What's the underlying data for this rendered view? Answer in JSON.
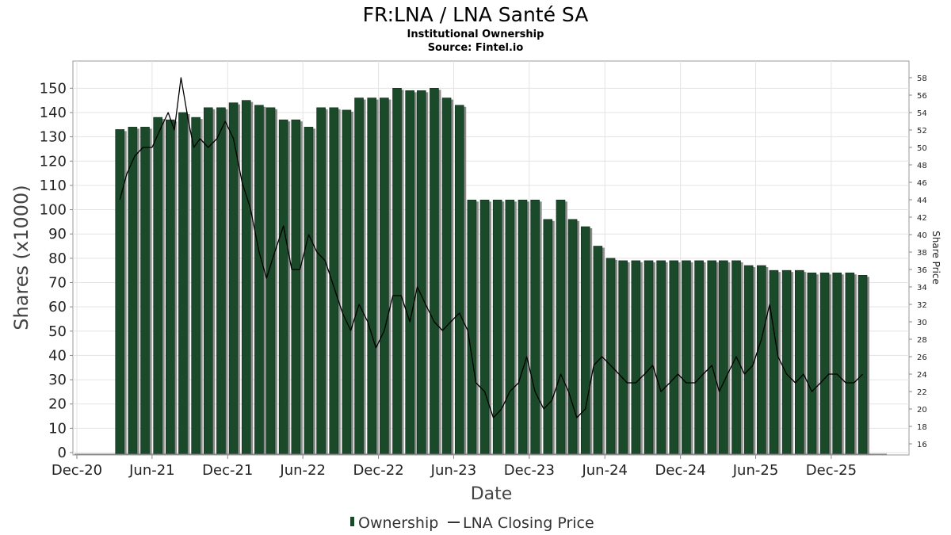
{
  "chart_data": {
    "type": "bar",
    "title": "FR:LNA / LNA Santé SA",
    "subtitle": "Institutional Ownership",
    "source": "Source: Fintel.io",
    "xlabel": "Date",
    "ylabel": "Shares (x1000)",
    "y2label": "Share Price",
    "ylim": [
      0,
      155
    ],
    "y2lim": [
      15,
      59
    ],
    "xlim": [
      "2020-12-01",
      "2026-04-01"
    ],
    "grid": true,
    "legend_position": "bottom-center",
    "x_ticks": [
      {
        "label": "Dec-20",
        "date": "2020-12-01"
      },
      {
        "label": "Jun-21",
        "date": "2021-06-01"
      },
      {
        "label": "Dec-21",
        "date": "2021-12-01"
      },
      {
        "label": "Jun-22",
        "date": "2022-06-01"
      },
      {
        "label": "Dec-22",
        "date": "2022-12-01"
      },
      {
        "label": "Jun-23",
        "date": "2023-06-01"
      },
      {
        "label": "Dec-23",
        "date": "2023-12-01"
      },
      {
        "label": "Jun-24",
        "date": "2024-06-01"
      },
      {
        "label": "Dec-24",
        "date": "2024-12-01"
      },
      {
        "label": "Jun-25",
        "date": "2025-06-01"
      },
      {
        "label": "Dec-25",
        "date": "2025-12-01"
      }
    ],
    "y_ticks": [
      0,
      10,
      20,
      30,
      40,
      50,
      60,
      70,
      80,
      90,
      100,
      110,
      120,
      130,
      140,
      150
    ],
    "y2_ticks": [
      16,
      18,
      20,
      22,
      24,
      26,
      28,
      30,
      32,
      34,
      36,
      38,
      40,
      42,
      44,
      46,
      48,
      50,
      52,
      54,
      56,
      58
    ],
    "series": [
      {
        "name": "Ownership",
        "type": "bar",
        "color": "#1b4a2a",
        "x": [
          "2021-03-15",
          "2021-04-15",
          "2021-05-15",
          "2021-06-15",
          "2021-07-15",
          "2021-08-15",
          "2021-09-15",
          "2021-10-15",
          "2021-11-15",
          "2021-12-15",
          "2022-01-15",
          "2022-02-15",
          "2022-03-15",
          "2022-04-15",
          "2022-05-15",
          "2022-06-15",
          "2022-07-15",
          "2022-08-15",
          "2022-09-15",
          "2022-10-15",
          "2022-11-15",
          "2022-12-15",
          "2023-01-15",
          "2023-02-15",
          "2023-03-15",
          "2023-04-15",
          "2023-05-15",
          "2023-06-15",
          "2023-07-15",
          "2023-08-15",
          "2023-09-15",
          "2023-10-15",
          "2023-11-15",
          "2023-12-15",
          "2024-01-15",
          "2024-02-15",
          "2024-03-15",
          "2024-04-15",
          "2024-05-15",
          "2024-06-15",
          "2024-07-15",
          "2024-08-15",
          "2024-09-15",
          "2024-10-15",
          "2024-11-15",
          "2024-12-15",
          "2025-01-15",
          "2025-02-15",
          "2025-03-15",
          "2025-04-15",
          "2025-05-15",
          "2025-06-15",
          "2025-07-15",
          "2025-08-15",
          "2025-09-15",
          "2025-10-15",
          "2025-11-15",
          "2025-12-15",
          "2026-01-15",
          "2026-02-15"
        ],
        "values": [
          133,
          134,
          134,
          138,
          137,
          140,
          138,
          142,
          142,
          144,
          145,
          143,
          142,
          137,
          137,
          134,
          142,
          142,
          141,
          146,
          146,
          146,
          150,
          149,
          149,
          150,
          146,
          143,
          104,
          104,
          104,
          104,
          104,
          104,
          96,
          104,
          96,
          93,
          85,
          80,
          79,
          79,
          79,
          79,
          79,
          79,
          79,
          79,
          79,
          79,
          77,
          77,
          75,
          75,
          75,
          74,
          74,
          74,
          74,
          73
        ]
      },
      {
        "name": "LNA Closing Price",
        "type": "line",
        "color": "#000000",
        "x": [
          "2021-03-15",
          "2021-04-01",
          "2021-04-20",
          "2021-05-10",
          "2021-06-01",
          "2021-06-20",
          "2021-07-10",
          "2021-07-25",
          "2021-08-10",
          "2021-08-28",
          "2021-09-10",
          "2021-09-25",
          "2021-10-15",
          "2021-11-05",
          "2021-11-25",
          "2021-12-15",
          "2022-01-05",
          "2022-01-25",
          "2022-02-15",
          "2022-03-05",
          "2022-03-25",
          "2022-04-15",
          "2022-05-05",
          "2022-05-25",
          "2022-06-15",
          "2022-07-05",
          "2022-07-25",
          "2022-08-15",
          "2022-09-05",
          "2022-09-25",
          "2022-10-15",
          "2022-11-05",
          "2022-11-25",
          "2022-12-15",
          "2023-01-05",
          "2023-01-25",
          "2023-02-15",
          "2023-03-05",
          "2023-03-25",
          "2023-04-15",
          "2023-05-05",
          "2023-05-25",
          "2023-06-15",
          "2023-07-05",
          "2023-07-25",
          "2023-08-15",
          "2023-09-05",
          "2023-09-25",
          "2023-10-15",
          "2023-11-05",
          "2023-11-25",
          "2023-12-15",
          "2024-01-05",
          "2024-01-25",
          "2024-02-15",
          "2024-03-05",
          "2024-03-25",
          "2024-04-15",
          "2024-05-05",
          "2024-05-25",
          "2024-06-15",
          "2024-07-05",
          "2024-07-25",
          "2024-08-15",
          "2024-09-05",
          "2024-09-25",
          "2024-10-15",
          "2024-11-05",
          "2024-11-25",
          "2024-12-15",
          "2025-01-05",
          "2025-01-25",
          "2025-02-15",
          "2025-03-05",
          "2025-03-25",
          "2025-04-15",
          "2025-05-05",
          "2025-05-25",
          "2025-06-15",
          "2025-07-05",
          "2025-07-25",
          "2025-08-15",
          "2025-09-05",
          "2025-09-25",
          "2025-10-15",
          "2025-11-05",
          "2025-11-25",
          "2025-12-15",
          "2026-01-05",
          "2026-01-25",
          "2026-02-15"
        ],
        "values": [
          44,
          47,
          49,
          50,
          50,
          52,
          54,
          52,
          58,
          53,
          50,
          51,
          50,
          51,
          53,
          51,
          46,
          43,
          38,
          35,
          38,
          41,
          36,
          36,
          40,
          38,
          37,
          34,
          31,
          29,
          32,
          30,
          27,
          29,
          33,
          33,
          30,
          34,
          32,
          30,
          29,
          30,
          31,
          29,
          23,
          22,
          19,
          20,
          22,
          23,
          26,
          22,
          20,
          21,
          24,
          22,
          19,
          20,
          25,
          26,
          25,
          24,
          23,
          23,
          24,
          25,
          22,
          23,
          24,
          23,
          23,
          24,
          25,
          22,
          24,
          26,
          24,
          25,
          28,
          32,
          26,
          24,
          23,
          24,
          22,
          23,
          24,
          24,
          23,
          23,
          24
        ]
      }
    ]
  }
}
